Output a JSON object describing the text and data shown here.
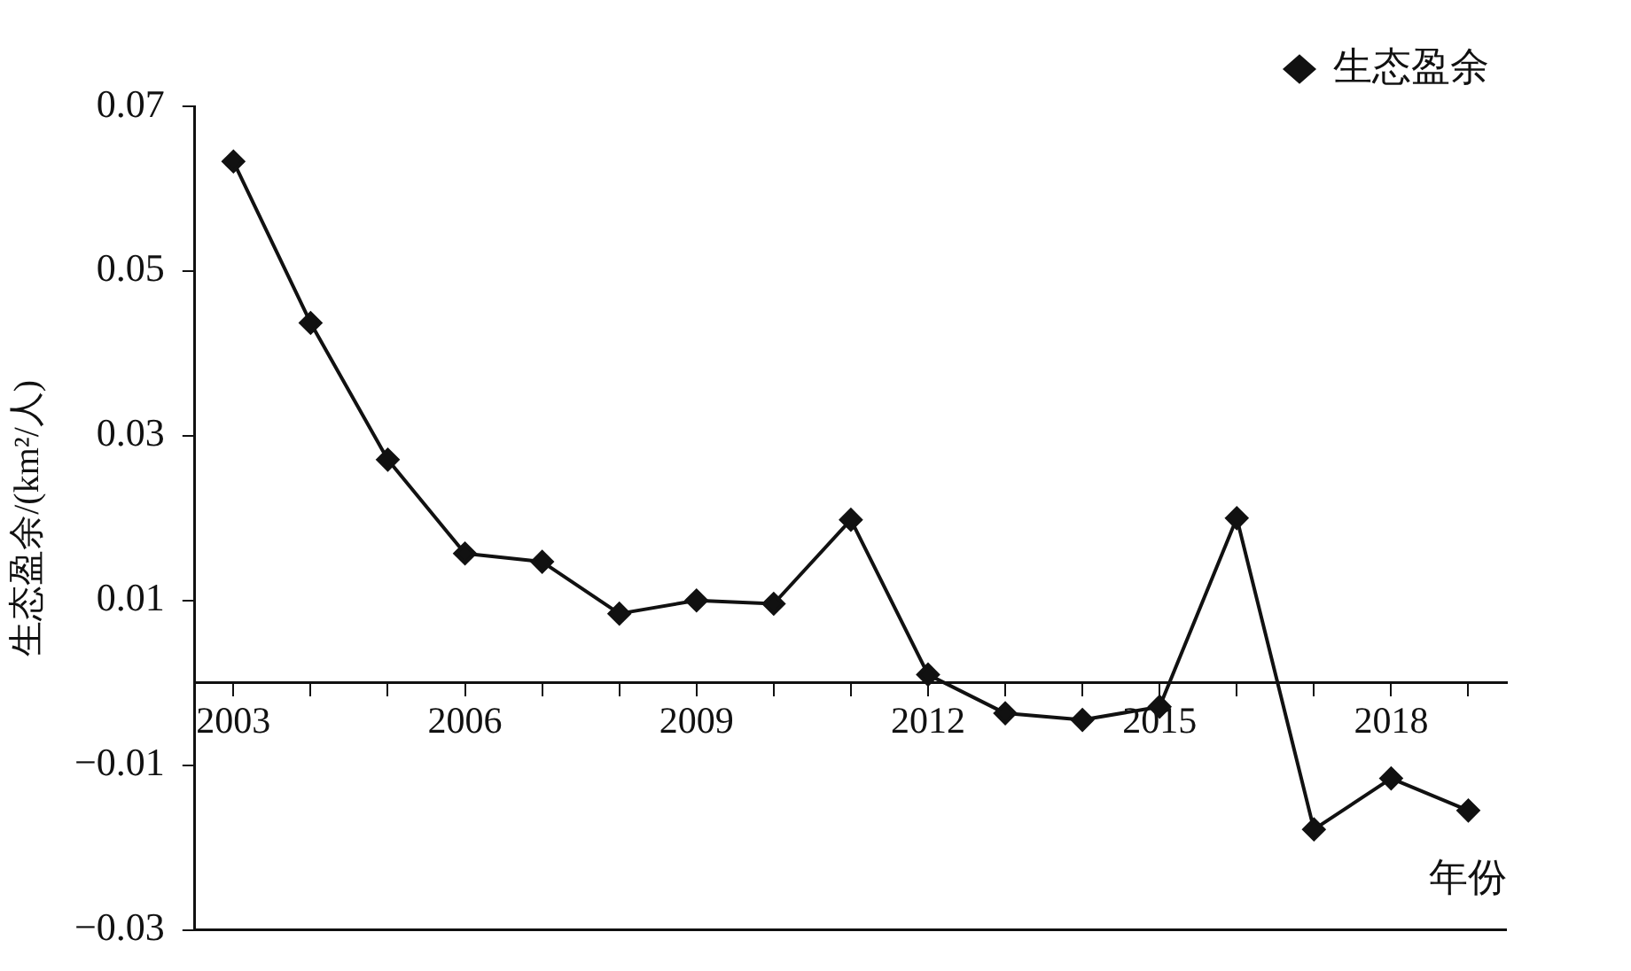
{
  "chart_data": {
    "type": "line",
    "ylabel": "生态盈余/(km²/人)",
    "xlabel": "年份",
    "categories": [
      "2003",
      null,
      null,
      "2006",
      null,
      null,
      "2009",
      null,
      null,
      "2012",
      null,
      null,
      "2015",
      null,
      null,
      "2018",
      null
    ],
    "series": [
      {
        "name": "生态盈余",
        "color": "#111111",
        "values": [
          0.0633,
          0.0437,
          0.0271,
          0.0157,
          0.0147,
          0.0084,
          0.01,
          0.0096,
          0.0198,
          0.001,
          -0.0037,
          -0.0045,
          -0.0029,
          0.02,
          -0.0178,
          -0.0116,
          -0.0155
        ]
      }
    ],
    "ylim": [
      -0.03,
      0.07
    ],
    "yticks": [
      {
        "value": -0.03,
        "label": "−0.03"
      },
      {
        "value": -0.01,
        "label": "−0.01"
      },
      0.01,
      0.03,
      0.05,
      0.07
    ],
    "marker": "diamond",
    "line_style": "solid",
    "legend": "top right",
    "grid": false
  }
}
